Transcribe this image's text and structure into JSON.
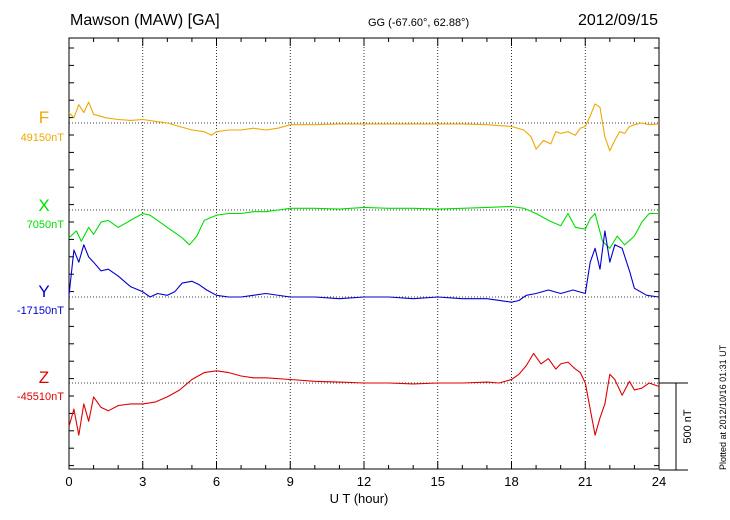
{
  "header": {
    "station": "Mawson (MAW)  [GA]",
    "coords": "GG (-67.60°,  62.88°)",
    "date": "2012/09/15"
  },
  "footer": {
    "plotted": "Plotted at 2012/10/16 01:31  UT"
  },
  "chart_data": {
    "type": "line",
    "xlabel": "U T (hour)",
    "xlim": [
      0,
      24
    ],
    "xticks": [
      "0",
      "3",
      "6",
      "9",
      "12",
      "15",
      "18",
      "21",
      "24"
    ],
    "scale_label": "500 nT",
    "scale_nT": 500,
    "series": [
      {
        "name": "F",
        "baseline_label": "49150nT",
        "color": "#f0a800",
        "x": [
          0,
          0.2,
          0.4,
          0.6,
          0.8,
          1,
          1.5,
          2,
          2.5,
          3,
          3.5,
          4,
          4.5,
          5,
          5.5,
          5.8,
          6,
          6.5,
          7,
          7.5,
          8,
          8.5,
          9,
          10,
          11,
          12,
          13,
          14,
          15,
          16,
          17,
          18,
          18.5,
          18.8,
          19,
          19.3,
          19.6,
          19.8,
          20,
          20.3,
          20.6,
          20.8,
          21,
          21.2,
          21.4,
          21.6,
          21.8,
          22,
          22.2,
          22.4,
          22.6,
          22.8,
          23,
          23.3,
          23.6,
          24
        ],
        "y": [
          60,
          30,
          105,
          60,
          120,
          50,
          30,
          20,
          15,
          20,
          10,
          0,
          -20,
          -40,
          -50,
          -70,
          -50,
          -40,
          -40,
          -30,
          -40,
          -30,
          -10,
          -10,
          -5,
          -5,
          -5,
          -5,
          -5,
          -5,
          -10,
          -20,
          -40,
          -80,
          -150,
          -100,
          -120,
          -50,
          -60,
          -50,
          -70,
          -30,
          -20,
          40,
          110,
          90,
          -80,
          -160,
          -100,
          -50,
          -60,
          -20,
          -10,
          0,
          -10,
          -5
        ]
      },
      {
        "name": "X",
        "baseline_label": "7050nT",
        "color": "#00e000",
        "x": [
          0,
          0.3,
          0.5,
          0.8,
          1,
          1.3,
          1.6,
          2,
          2.5,
          3,
          3.3,
          3.6,
          4,
          4.3,
          4.6,
          4.9,
          5.2,
          5.5,
          6,
          6.5,
          7,
          7.5,
          8,
          8.5,
          9,
          10,
          11,
          12,
          13,
          14,
          15,
          16,
          17,
          18,
          18.5,
          19,
          19.5,
          20,
          20.3,
          20.6,
          21,
          21.2,
          21.4,
          21.7,
          22,
          22.3,
          22.6,
          23,
          23.3,
          23.6,
          24
        ],
        "y": [
          -160,
          -120,
          -180,
          -100,
          -140,
          -70,
          -60,
          -100,
          -60,
          -20,
          -30,
          -60,
          -100,
          -130,
          -160,
          -200,
          -150,
          -60,
          -30,
          -20,
          -20,
          -10,
          -10,
          0,
          10,
          10,
          5,
          15,
          10,
          10,
          5,
          10,
          15,
          20,
          10,
          -20,
          -60,
          -90,
          -20,
          -100,
          -110,
          -50,
          -20,
          -180,
          -220,
          -150,
          -200,
          -150,
          -70,
          -20,
          -20
        ]
      },
      {
        "name": "Y",
        "baseline_label": "-17150nT",
        "color": "#0000d0",
        "x": [
          0,
          0.2,
          0.4,
          0.6,
          0.8,
          1,
          1.3,
          1.6,
          2,
          2.5,
          3,
          3.3,
          3.6,
          4,
          4.3,
          4.6,
          5,
          5.3,
          5.6,
          6,
          6.5,
          7,
          8,
          9,
          10,
          11,
          12,
          13,
          14,
          15,
          16,
          17,
          18,
          18.3,
          18.6,
          19,
          19.5,
          20,
          20.5,
          21,
          21.2,
          21.4,
          21.6,
          21.8,
          22,
          22.2,
          22.5,
          22.8,
          23,
          23.5,
          24
        ],
        "y": [
          10,
          270,
          200,
          300,
          230,
          200,
          150,
          160,
          120,
          60,
          30,
          0,
          20,
          10,
          30,
          80,
          90,
          70,
          40,
          10,
          0,
          0,
          20,
          0,
          0,
          -10,
          0,
          0,
          -10,
          0,
          -10,
          -10,
          -30,
          -20,
          10,
          20,
          40,
          20,
          40,
          20,
          200,
          280,
          160,
          380,
          200,
          300,
          280,
          150,
          50,
          10,
          0
        ]
      },
      {
        "name": "Z",
        "baseline_label": "-45510nT",
        "color": "#e00000",
        "x": [
          0,
          0.2,
          0.4,
          0.6,
          0.8,
          1,
          1.3,
          1.6,
          2,
          2.5,
          3,
          3.5,
          4,
          4.5,
          5,
          5.5,
          6,
          6.5,
          7,
          7.5,
          8,
          9,
          10,
          11,
          12,
          13,
          14,
          15,
          16,
          17,
          17.5,
          18,
          18.3,
          18.6,
          18.9,
          19.2,
          19.5,
          19.8,
          20,
          20.3,
          20.6,
          20.8,
          21,
          21.2,
          21.4,
          21.6,
          21.8,
          22,
          22.2,
          22.5,
          22.8,
          23,
          23.3,
          23.6,
          24
        ],
        "y": [
          -250,
          -150,
          -300,
          -120,
          -220,
          -80,
          -140,
          -160,
          -130,
          -120,
          -120,
          -110,
          -80,
          -40,
          20,
          60,
          70,
          60,
          40,
          30,
          30,
          20,
          10,
          5,
          0,
          0,
          -5,
          0,
          0,
          5,
          0,
          20,
          50,
          100,
          170,
          110,
          140,
          80,
          110,
          120,
          80,
          60,
          0,
          -150,
          -300,
          -200,
          -120,
          50,
          20,
          -70,
          10,
          -40,
          -30,
          0,
          -20
        ]
      }
    ]
  }
}
